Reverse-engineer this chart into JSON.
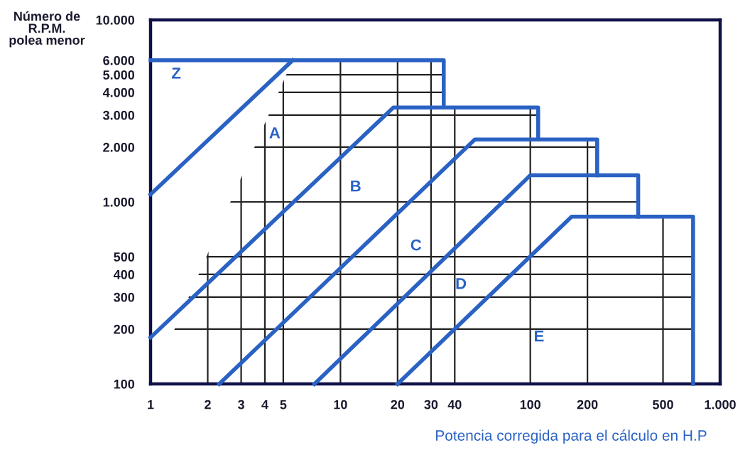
{
  "chart_data": {
    "type": "line",
    "xlabel": "Potencia corregida para el cálculo en H.P",
    "ylabel": "Número de\nR.P.M.\npolea menor",
    "log": "xy",
    "grid": true,
    "marker": "none",
    "line_style": "solid",
    "xlim": [
      1,
      1000
    ],
    "ylim": [
      100,
      10000
    ],
    "xticks": [
      1,
      2,
      3,
      4,
      5,
      10,
      20,
      30,
      40,
      100,
      200,
      500,
      {
        "value": 1000,
        "label": "1.000"
      }
    ],
    "yticks": [
      100,
      200,
      300,
      400,
      500,
      {
        "value": 1000,
        "label": "1.000"
      },
      {
        "value": 2000,
        "label": "2.000"
      },
      {
        "value": 3000,
        "label": "3.000"
      },
      {
        "value": 4000,
        "label": "4.000"
      },
      {
        "value": 5000,
        "label": "5.000"
      },
      {
        "value": 6000,
        "label": "6.000"
      },
      {
        "value": 10000,
        "label": "10.000"
      }
    ],
    "series": [
      {
        "color": "#2a62c4",
        "x": [
          1,
          5.6
        ],
        "values": [
          1100,
          6000
        ]
      },
      {
        "color": "#2a62c4",
        "x": [
          1,
          35,
          35
        ],
        "values": [
          6000,
          6000,
          3300
        ]
      },
      {
        "color": "#2a62c4",
        "x": [
          1,
          19,
          110,
          110
        ],
        "values": [
          180,
          3300,
          3300,
          2200
        ]
      },
      {
        "color": "#2a62c4",
        "x": [
          2.3,
          51,
          225,
          225
        ],
        "values": [
          100,
          2200,
          2200,
          1400
        ]
      },
      {
        "color": "#2a62c4",
        "x": [
          7.3,
          100,
          370,
          370
        ],
        "values": [
          100,
          1400,
          1400,
          830
        ]
      },
      {
        "color": "#2a62c4",
        "x": [
          20,
          165,
          720,
          720
        ],
        "values": [
          100,
          830,
          830,
          100
        ]
      }
    ],
    "annotations": [
      "Z",
      "A",
      "B",
      "C",
      "D",
      "E"
    ]
  }
}
